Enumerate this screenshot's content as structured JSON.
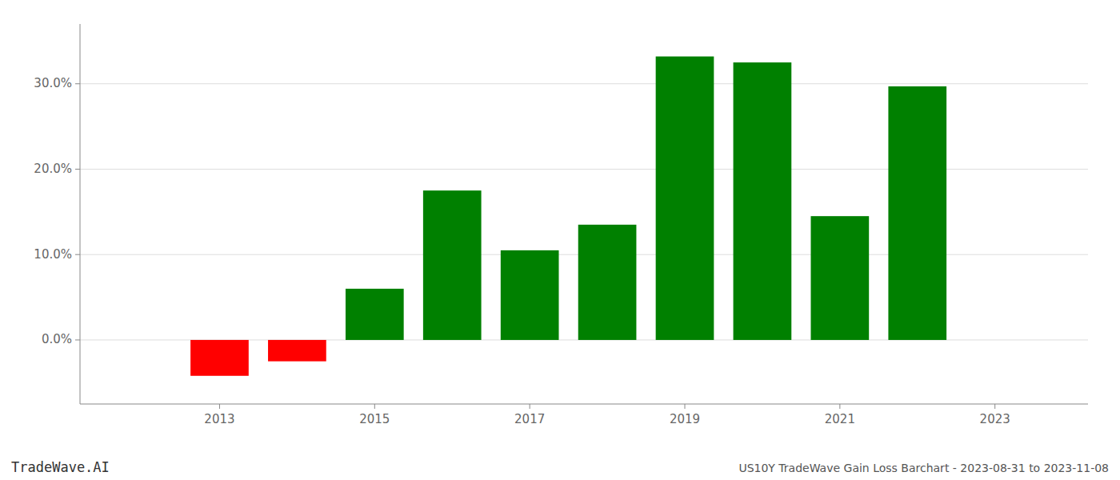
{
  "chart_data": {
    "type": "bar",
    "x": [
      2013,
      2014,
      2015,
      2016,
      2017,
      2018,
      2019,
      2020,
      2021,
      2022
    ],
    "values": [
      -0.042,
      -0.025,
      0.06,
      0.175,
      0.105,
      0.135,
      0.332,
      0.325,
      0.145,
      0.297
    ],
    "colors": [
      "#ff0000",
      "#ff0000",
      "#008000",
      "#008000",
      "#008000",
      "#008000",
      "#008000",
      "#008000",
      "#008000",
      "#008000"
    ],
    "xlim": [
      2011.2,
      2024.2
    ],
    "xticks": [
      2013,
      2015,
      2017,
      2019,
      2021,
      2023
    ],
    "ylim": [
      -0.075,
      0.37
    ],
    "yticks": [
      {
        "value": 0.0,
        "label": "0.0%"
      },
      {
        "value": 0.1,
        "label": "10.0%"
      },
      {
        "value": 0.2,
        "label": "20.0%"
      },
      {
        "value": 0.3,
        "label": "30.0%"
      }
    ],
    "grid": true,
    "annotations": [
      "TradeWave.AI",
      "US10Y TradeWave Gain Loss Barchart - 2023-08-31 to 2023-11-08"
    ]
  }
}
